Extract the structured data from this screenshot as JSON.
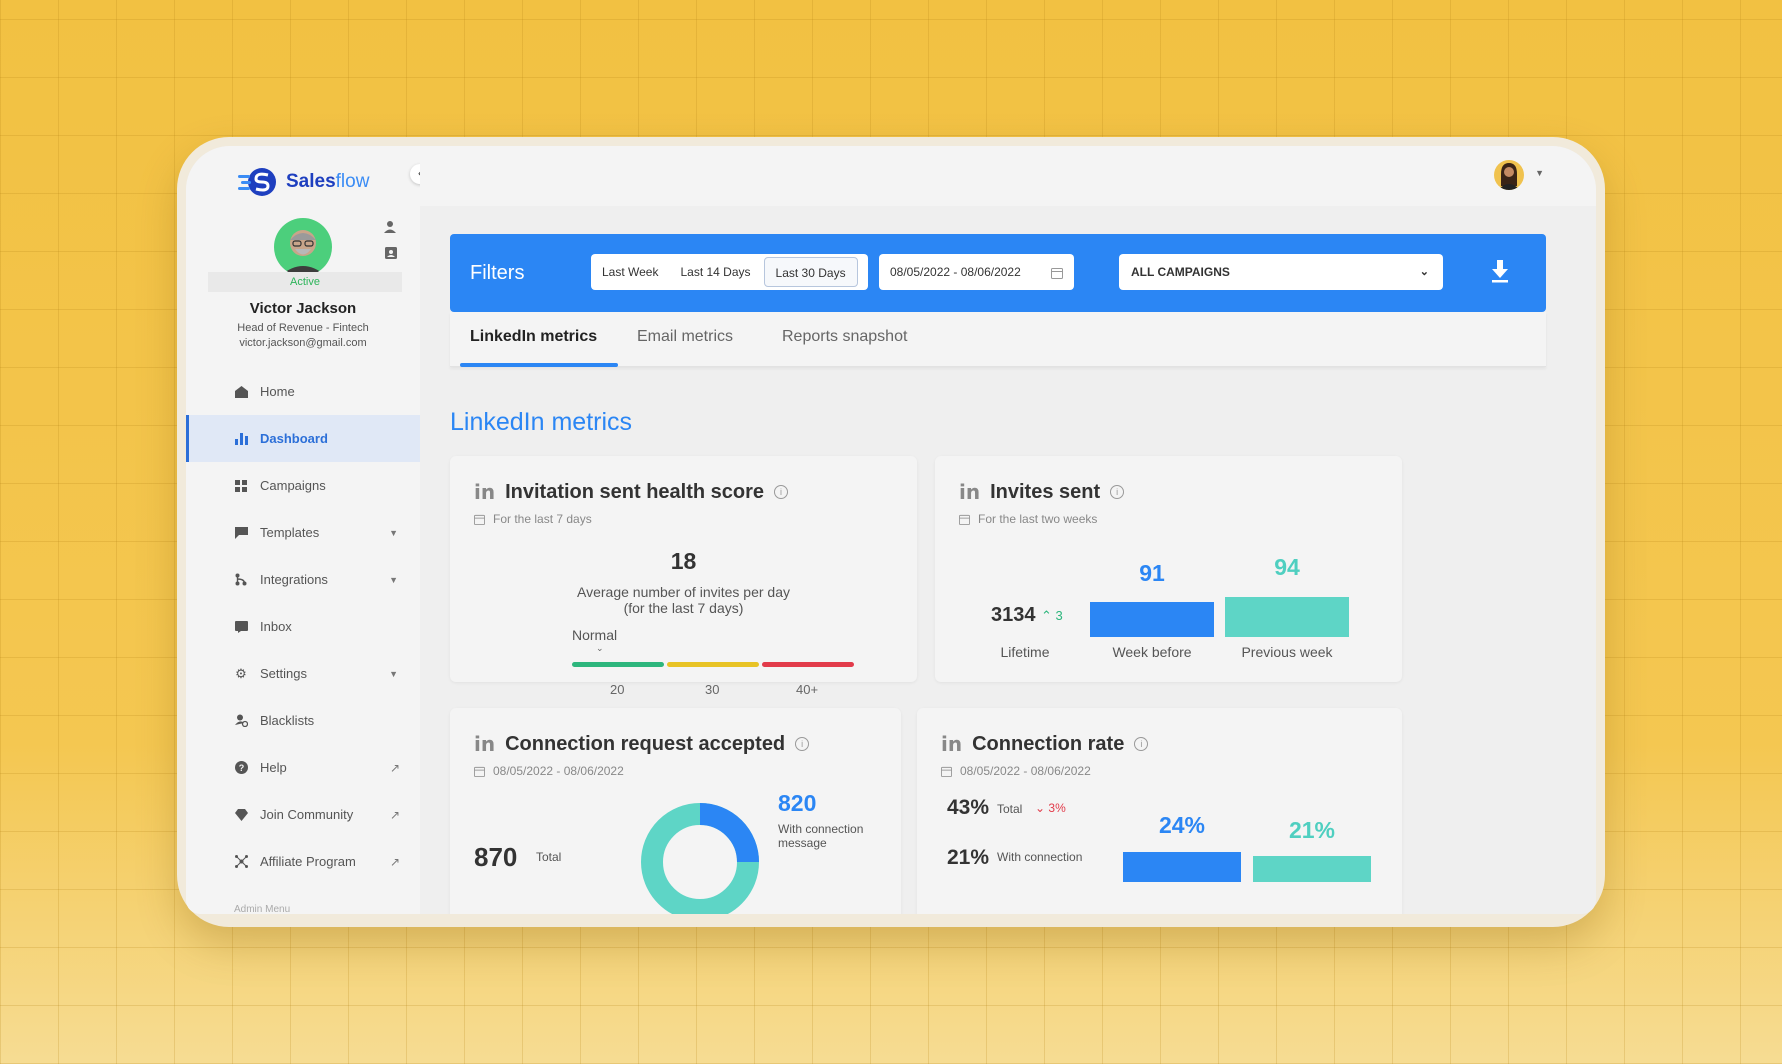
{
  "app": {
    "brand_a": "Sales",
    "brand_b": "flow"
  },
  "user": {
    "status": "Active",
    "name": "Victor Jackson",
    "role": "Head of Revenue - Fintech",
    "email": "victor.jackson@gmail.com"
  },
  "nav": {
    "items": [
      {
        "label": "Home",
        "icon": "home-icon"
      },
      {
        "label": "Dashboard",
        "icon": "bar-chart-icon"
      },
      {
        "label": "Campaigns",
        "icon": "grid-icon"
      },
      {
        "label": "Templates",
        "icon": "chat-icon"
      },
      {
        "label": "Integrations",
        "icon": "branch-icon"
      },
      {
        "label": "Inbox",
        "icon": "inbox-icon"
      },
      {
        "label": "Settings",
        "icon": "gear-icon"
      },
      {
        "label": "Blacklists",
        "icon": "user-block-icon"
      },
      {
        "label": "Help",
        "icon": "help-icon"
      },
      {
        "label": "Join Community",
        "icon": "diamond-icon"
      },
      {
        "label": "Affiliate Program",
        "icon": "network-icon"
      }
    ],
    "admin": "Admin Menu"
  },
  "filters": {
    "title": "Filters",
    "ranges": [
      "Last Week",
      "Last 14 Days",
      "Last 30 Days"
    ],
    "selected_range": "Last 30 Days",
    "date_range": "08/05/2022 - 08/06/2022",
    "campaign": "ALL CAMPAIGNS"
  },
  "tabs": [
    "LinkedIn metrics",
    "Email metrics",
    "Reports snapshot"
  ],
  "section_title": "LinkedIn metrics",
  "health": {
    "title": "Invitation sent health score",
    "subtitle": "For the last 7 days",
    "value": "18",
    "desc1": "Average number of invites per day",
    "desc2": "(for the last 7 days)",
    "status": "Normal",
    "ticks": [
      "20",
      "30",
      "40+"
    ],
    "colors": [
      "#2db67d",
      "#e8c325",
      "#e23b4a"
    ]
  },
  "invites": {
    "title": "Invites sent",
    "subtitle": "For the last two weeks",
    "lifetime": "3134",
    "delta": "3",
    "lifetime_label": "Lifetime",
    "week_before": "91",
    "week_before_label": "Week before",
    "previous_week": "94",
    "previous_week_label": "Previous week"
  },
  "accepted": {
    "title": "Connection request accepted",
    "date": "08/05/2022 - 08/06/2022",
    "total": "870",
    "total_label": "Total",
    "with_msg": "820",
    "with_msg_label1": "With connection",
    "with_msg_label2": "message"
  },
  "rate": {
    "title": "Connection rate",
    "date": "08/05/2022 - 08/06/2022",
    "total": "43%",
    "total_label": "Total",
    "delta": "3%",
    "with_conn": "21%",
    "with_conn_label": "With connection",
    "week_before": "24%",
    "previous_week": "21%"
  }
}
